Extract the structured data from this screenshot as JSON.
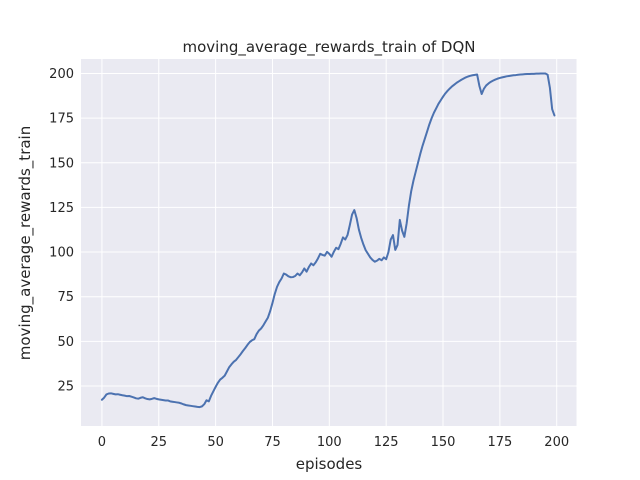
{
  "figure": {
    "title": "moving_average_rewards_train of DQN",
    "xlabel": "episodes",
    "ylabel": "moving_average_rewards_train"
  },
  "chart_data": {
    "type": "line",
    "title": "moving_average_rewards_train of DQN",
    "xlabel": "episodes",
    "ylabel": "moving_average_rewards_train",
    "x_ticks": [
      0,
      25,
      50,
      75,
      100,
      125,
      150,
      175,
      200
    ],
    "y_ticks": [
      25,
      50,
      75,
      100,
      125,
      150,
      175,
      200
    ],
    "xlim": [
      -9.2,
      208.7
    ],
    "ylim": [
      2.6,
      208.1
    ],
    "grid": true,
    "legend_position": "none",
    "colors": {
      "line": "#4C72B0",
      "plot_background": "#EAEAF2",
      "gridline": "#FFFFFF",
      "figure_background": "#FFFFFF",
      "text": "#262626"
    },
    "series": [
      {
        "name": "moving_average_rewards_train",
        "points": [
          [
            0,
            17.3
          ],
          [
            1,
            18.5
          ],
          [
            2,
            20.3
          ],
          [
            3,
            20.8
          ],
          [
            4,
            20.9
          ],
          [
            5,
            20.6
          ],
          [
            6,
            20.3
          ],
          [
            7,
            20.4
          ],
          [
            8,
            20.1
          ],
          [
            9,
            19.8
          ],
          [
            10,
            19.6
          ],
          [
            11,
            19.3
          ],
          [
            12,
            19.4
          ],
          [
            13,
            19.0
          ],
          [
            14,
            18.6
          ],
          [
            15,
            18.1
          ],
          [
            16,
            17.9
          ],
          [
            17,
            18.4
          ],
          [
            18,
            18.7
          ],
          [
            19,
            18.1
          ],
          [
            20,
            17.7
          ],
          [
            21,
            17.5
          ],
          [
            22,
            17.8
          ],
          [
            23,
            18.2
          ],
          [
            24,
            17.8
          ],
          [
            25,
            17.5
          ],
          [
            26,
            17.3
          ],
          [
            27,
            17.1
          ],
          [
            28,
            16.9
          ],
          [
            29,
            16.9
          ],
          [
            30,
            16.4
          ],
          [
            31,
            16.2
          ],
          [
            32,
            16.0
          ],
          [
            33,
            15.8
          ],
          [
            34,
            15.6
          ],
          [
            35,
            15.2
          ],
          [
            36,
            14.7
          ],
          [
            37,
            14.3
          ],
          [
            38,
            14.1
          ],
          [
            39,
            13.9
          ],
          [
            40,
            13.7
          ],
          [
            41,
            13.5
          ],
          [
            42,
            13.3
          ],
          [
            43,
            13.2
          ],
          [
            44,
            13.6
          ],
          [
            45,
            14.8
          ],
          [
            46,
            17.0
          ],
          [
            47,
            16.4
          ],
          [
            48,
            19.5
          ],
          [
            49,
            22.0
          ],
          [
            50,
            24.5
          ],
          [
            51,
            26.8
          ],
          [
            52,
            28.6
          ],
          [
            53,
            29.6
          ],
          [
            54,
            30.8
          ],
          [
            55,
            33.2
          ],
          [
            56,
            35.6
          ],
          [
            57,
            37.2
          ],
          [
            58,
            38.6
          ],
          [
            59,
            39.6
          ],
          [
            60,
            41.2
          ],
          [
            61,
            42.8
          ],
          [
            62,
            44.6
          ],
          [
            63,
            46.2
          ],
          [
            64,
            48.0
          ],
          [
            65,
            49.6
          ],
          [
            66,
            50.6
          ],
          [
            67,
            51.2
          ],
          [
            68,
            54.0
          ],
          [
            69,
            56.0
          ],
          [
            70,
            57.2
          ],
          [
            71,
            59.0
          ],
          [
            72,
            61.2
          ],
          [
            73,
            63.3
          ],
          [
            74,
            67.0
          ],
          [
            75,
            71.5
          ],
          [
            76,
            76.5
          ],
          [
            77,
            80.5
          ],
          [
            78,
            83.2
          ],
          [
            79,
            85.2
          ],
          [
            80,
            88.0
          ],
          [
            81,
            87.4
          ],
          [
            82,
            86.4
          ],
          [
            83,
            85.9
          ],
          [
            84,
            86.0
          ],
          [
            85,
            86.6
          ],
          [
            86,
            88.0
          ],
          [
            87,
            87.0
          ],
          [
            88,
            88.6
          ],
          [
            89,
            90.8
          ],
          [
            90,
            89.0
          ],
          [
            91,
            91.6
          ],
          [
            92,
            93.6
          ],
          [
            93,
            92.6
          ],
          [
            94,
            94.2
          ],
          [
            95,
            96.4
          ],
          [
            96,
            99.0
          ],
          [
            97,
            98.4
          ],
          [
            98,
            98.0
          ],
          [
            99,
            100.1
          ],
          [
            100,
            99.0
          ],
          [
            101,
            97.4
          ],
          [
            102,
            100.2
          ],
          [
            103,
            102.4
          ],
          [
            104,
            101.6
          ],
          [
            105,
            104.6
          ],
          [
            106,
            108.2
          ],
          [
            107,
            107.0
          ],
          [
            108,
            109.5
          ],
          [
            109,
            115.0
          ],
          [
            110,
            121.0
          ],
          [
            111,
            123.5
          ],
          [
            112,
            119.0
          ],
          [
            113,
            112.6
          ],
          [
            114,
            108.0
          ],
          [
            115,
            104.2
          ],
          [
            116,
            101.0
          ],
          [
            117,
            99.0
          ],
          [
            118,
            97.0
          ],
          [
            119,
            95.6
          ],
          [
            120,
            94.6
          ],
          [
            121,
            95.2
          ],
          [
            122,
            96.2
          ],
          [
            123,
            95.4
          ],
          [
            124,
            97.0
          ],
          [
            125,
            96.0
          ],
          [
            126,
            100.0
          ],
          [
            127,
            107.0
          ],
          [
            128,
            109.5
          ],
          [
            129,
            101.2
          ],
          [
            130,
            104.0
          ],
          [
            131,
            118.0
          ],
          [
            132,
            112.0
          ],
          [
            133,
            108.5
          ],
          [
            134,
            116.0
          ],
          [
            135,
            126.0
          ],
          [
            136,
            134.0
          ],
          [
            137,
            140.0
          ],
          [
            138,
            145.0
          ],
          [
            139,
            150.0
          ],
          [
            140,
            155.0
          ],
          [
            141,
            159.5
          ],
          [
            142,
            163.5
          ],
          [
            143,
            167.5
          ],
          [
            144,
            171.5
          ],
          [
            145,
            175.0
          ],
          [
            146,
            178.0
          ],
          [
            147,
            180.5
          ],
          [
            148,
            183.0
          ],
          [
            149,
            185.0
          ],
          [
            150,
            187.0
          ],
          [
            151,
            188.8
          ],
          [
            152,
            190.3
          ],
          [
            153,
            191.6
          ],
          [
            154,
            192.8
          ],
          [
            155,
            193.8
          ],
          [
            156,
            194.8
          ],
          [
            157,
            195.6
          ],
          [
            158,
            196.4
          ],
          [
            159,
            197.1
          ],
          [
            160,
            197.8
          ],
          [
            161,
            198.3
          ],
          [
            162,
            198.7
          ],
          [
            163,
            199.0
          ],
          [
            164,
            199.2
          ],
          [
            165,
            199.4
          ],
          [
            166,
            193.0
          ],
          [
            167,
            188.5
          ],
          [
            168,
            191.5
          ],
          [
            169,
            193.3
          ],
          [
            170,
            194.4
          ],
          [
            171,
            195.3
          ],
          [
            172,
            196.0
          ],
          [
            173,
            196.6
          ],
          [
            174,
            197.1
          ],
          [
            175,
            197.5
          ],
          [
            176,
            197.8
          ],
          [
            177,
            198.1
          ],
          [
            178,
            198.4
          ],
          [
            179,
            198.6
          ],
          [
            180,
            198.8
          ],
          [
            181,
            199.0
          ],
          [
            182,
            199.1
          ],
          [
            183,
            199.3
          ],
          [
            184,
            199.4
          ],
          [
            185,
            199.5
          ],
          [
            186,
            199.6
          ],
          [
            187,
            199.7
          ],
          [
            188,
            199.7
          ],
          [
            189,
            199.8
          ],
          [
            190,
            199.8
          ],
          [
            191,
            199.9
          ],
          [
            192,
            199.9
          ],
          [
            193,
            200.0
          ],
          [
            194,
            200.0
          ],
          [
            195,
            200.0
          ],
          [
            196,
            199.3
          ],
          [
            197,
            192.0
          ],
          [
            198,
            180.0
          ],
          [
            199,
            176.5
          ]
        ]
      }
    ]
  }
}
